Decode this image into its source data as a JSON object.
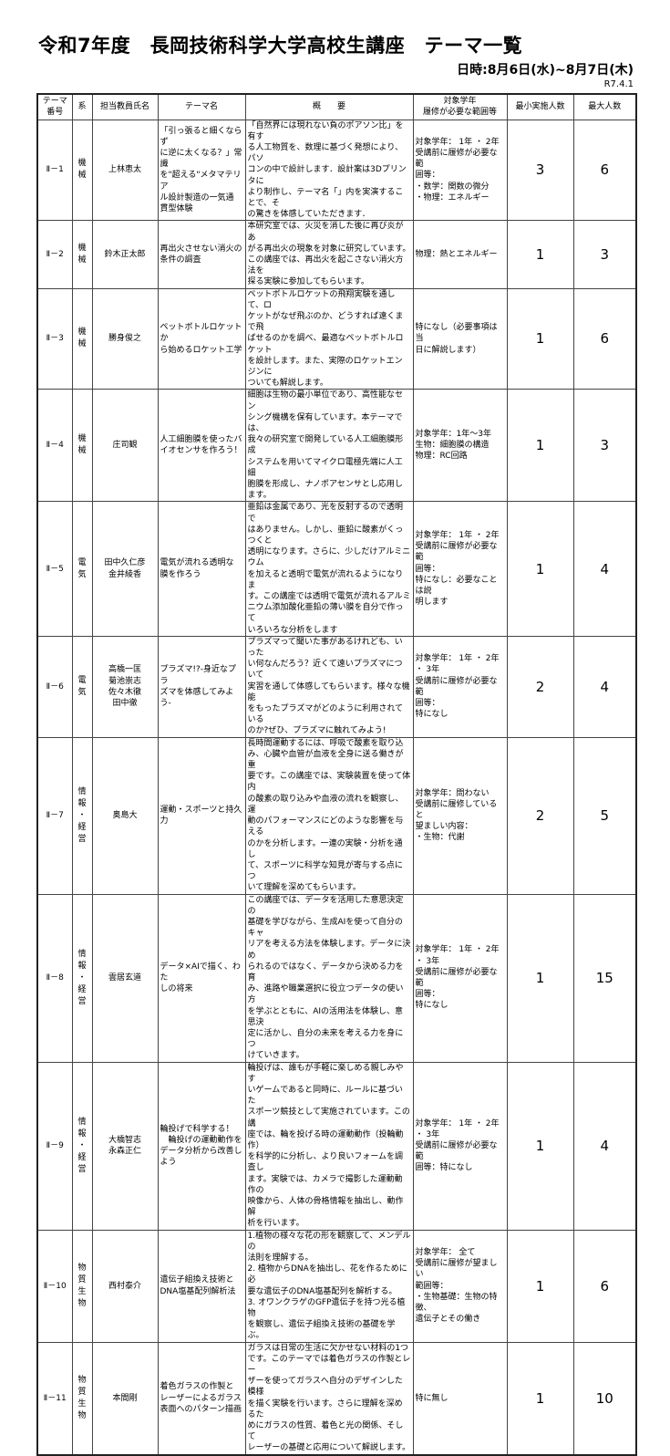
{
  "header": {
    "title": "令和7年度　長岡技術科学大学高校生講座　テーマ一覧",
    "date": "日時:8月6日(水)~8月7日(木)",
    "revision": "R7.4.1"
  },
  "columns": [
    "テーマ\n番号",
    "系",
    "担当教員氏名",
    "テーマ名",
    "概　　要",
    "対象学年\n履修が必要な範囲等",
    "最小実施人数",
    "最大人数"
  ],
  "rows": [
    {
      "no": "Ⅱ－1",
      "dept": "機\n械",
      "teacher": "上林恵太",
      "theme": "「引っ張ると細くならず\nに逆に太くなる？」常識\nを\"超える\"メタマテリア\nル設計製造の一気通\n貫型体験",
      "summary": "「自然界には現れない負のポアソン比」を有す\nる人工物質を、数理に基づく発想により、パソ\nコンの中で設計します．設計案は3Dプリンタに\nより制作し、テーマ名「」内を実演することで、そ\nの驚きを体感していただきます．",
      "requirements": "対象学年：  1年  ・  2年\n受講前に履修が必要な範\n囲等：\n・数学：関数の微分\n・物理：エネルギー",
      "min": "3",
      "max": "6"
    },
    {
      "no": "Ⅱ－2",
      "dept": "機\n械",
      "teacher": "鈴木正太郎",
      "theme": "再出火させない消火の\n条件の調査",
      "summary": "本研究室では、火災を消した後に再び炎があ\nがる再出火の現象を対象に研究しています。\nこの講座では、再出火を起こさない消火方法を\n探る実験に参加してもらいます。",
      "requirements": "物理：熱とエネルギー",
      "min": "1",
      "max": "3"
    },
    {
      "no": "Ⅱ－3",
      "dept": "機\n械",
      "teacher": "勝身俊之",
      "theme": "ペットボトルロケットか\nら始めるロケット工学",
      "summary": "ペットボトルロケットの飛翔実験を通して、ロ\nケットがなぜ飛ぶのか、どうすれば遠くまで飛\nばせるのかを調べ、最適なペットボトルロケット\nを設計します。また、実際のロケットエンジンに\nついても解説します。",
      "requirements": "特になし（必要事項は当\n日に解説します）",
      "min": "1",
      "max": "6"
    },
    {
      "no": "Ⅱ－4",
      "dept": "機\n械",
      "teacher": "庄司観",
      "theme": "人工細胞膜を使ったバ\nイオセンサを作ろう！",
      "summary": "細胞は生物の最小単位であり、高性能なセン\nシング機構を保有しています。本テーマでは、\n我々の研究室で開発している人工細胞膜形成\nシステムを用いてマイクロ電極先端に人工細\n胞膜を形成し、ナノポアセンサとし応用します。",
      "requirements": "対象学年：1年～3年\n生物：細胞膜の構造\n物理：RC回路",
      "min": "1",
      "max": "3"
    },
    {
      "no": "Ⅱ－5",
      "dept": "電\n気",
      "teacher": "田中久仁彦\n金井綾香",
      "theme": "電気が流れる透明な\n膜を作ろう",
      "summary": "亜鉛は金属であり、光を反射するので透明で\nはありません。しかし、亜鉛に酸素がくっつくと\n透明になります。さらに、少しだけアルミニウム\nを加えると透明で電気が流れるようになりま\nす。この講座では透明で電気が流れるアルミ\nニウム添加酸化亜鉛の薄い膜を自分で作って\nいろいろな分析をします",
      "requirements": "対象学年：  1年  ・  2年\n受講前に履修が必要な範\n囲等：\n特になし：必要なことは説\n明します",
      "min": "1",
      "max": "4"
    },
    {
      "no": "Ⅱ－6",
      "dept": "電\n気",
      "teacher": "高橋一匡\n菊池崇志\n佐々木徹\n田中徹",
      "theme": "プラズマ!?-身近なプラ\nズマを体感してみよう-",
      "summary": "プラズマって聞いた事があるけれども、いった\nい何なんだろう？近くて遠いプラズマについて\n実習を通して体感してもらいます。様々な機能\nをもったプラズマがどのように利用されている\nのか?ぜひ、プラズマに触れてみよう!",
      "requirements": "対象学年：  1年  ・  2年\n・  3年\n受講前に履修が必要な範\n囲等：\n特になし",
      "min": "2",
      "max": "4"
    },
    {
      "no": "Ⅱ－7",
      "dept": "情\n報\n・\n経\n営",
      "teacher": "奥島大",
      "theme": "運動・スポーツと持久\n力",
      "summary": "長時間運動するには、呼吸で酸素を取り込\nみ、心臓や血管が血液を全身に送る働きが重\n要です。この講座では、実験装置を使って体内\nの酸素の取り込みや血液の流れを観察し、運\n動のパフォーマンスにどのような影響を与える\nのかを分析します。一連の実験・分析を通し\nて、スポーツに科学な知見が寄与する点につ\nいて理解を深めてもらいます。",
      "requirements": "対象学年：問わない\n受講前に履修していると\n望ましい内容：\n・生物：代謝",
      "min": "2",
      "max": "5"
    },
    {
      "no": "Ⅱ－8",
      "dept": "情\n報\n・\n経\n営",
      "teacher": "雲居玄道",
      "theme": "データ×AIで描く、わた\nしの将来",
      "summary": "この講座では、データを活用した意思決定の\n基礎を学びながら、生成AIを使って自分のキャ\nリアを考える方法を体験します。データに決め\nられるのではなく、データから決める力を育\nみ、進路や職業選択に役立つデータの使い方\nを学ぶとともに、AIの活用法を体験し、意思決\n定に活かし、自分の未来を考える力を身につ\nけていきます。",
      "requirements": "対象学年：  1年  ・  2年\n・  3年\n受講前に履修が必要な範\n囲等：\n特になし",
      "min": "1",
      "max": "15"
    },
    {
      "no": "Ⅱ－9",
      "dept": "情\n報\n・\n経\n営",
      "teacher": "大橋智志\n永森正仁",
      "theme": "輪投げで科学する！\n　輪投げの運動動作を\nデータ分析から改善し\nよう",
      "summary": "輪投げは、誰もが手軽に楽しめる親しみやす\nいゲームであると同時に、ルールに基づいた\nスポーツ競技として実施されています。この講\n座では、輪を投げる時の運動動作（投輪動作）\nを科学的に分析し、より良いフォームを調査し\nます。実験では、カメラで撮影した運動動作の\n映像から、人体の骨格情報を抽出し、動作解\n析を行います。",
      "requirements": "対象学年：  1年  ・  2年\n・  3年\n受講前に履修が必要な範\n囲等：特になし",
      "min": "1",
      "max": "4"
    },
    {
      "no": "Ⅱ－10",
      "dept": "物\n質\n生\n物",
      "teacher": "西村泰介",
      "theme": "遺伝子組換え技術と\nDNA塩基配列解析法",
      "summary": "1.植物の様々な花の形を観察して、メンデルの\n法則を理解する。\n2. 植物からDNAを抽出し、花を作るために必\n要な遺伝子のDNA塩基配列を解析する。\n3. オワンクラゲのGFP遺伝子を持つ光る植物\nを観察し、遺伝子組換え技術の基礎を学ぶ。",
      "requirements": "対象学年：    全て\n受講前に履修が望ましい\n範囲等：\n・生物基礎：生物の特徴、\n遺伝子とその働き",
      "min": "1",
      "max": "6"
    },
    {
      "no": "Ⅱ－11",
      "dept": "物\n質\n生\n物",
      "teacher": "本間剛",
      "theme": "着色ガラスの作製と\nレーザーによるガラス\n表面へのパターン描画",
      "summary": "ガラスは日常の生活に欠かせない材料の1つ\nです。このテーマでは着色ガラスの作製とレー\nザーを使ってガラスへ自分のデザインした模様\nを描く実験を行います。さらに理解を深めるた\nめにガラスの性質、着色と光の関係、そして\nレーザーの基礎と応用について解説します。",
      "requirements": "特に無し",
      "min": "1",
      "max": "10"
    }
  ]
}
